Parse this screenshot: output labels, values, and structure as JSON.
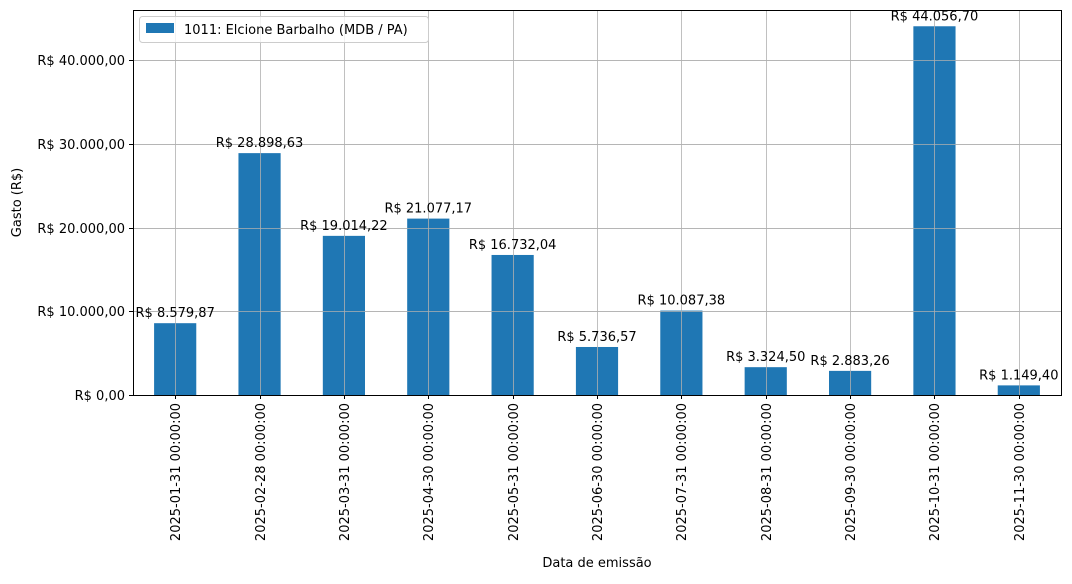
{
  "chart_data": {
    "type": "bar",
    "title": "",
    "xlabel": "Data de emissão",
    "ylabel": "Gasto (R$)",
    "ylim": [
      0,
      46000
    ],
    "grid": true,
    "legend_position": "upper left",
    "legend": [
      "1011: Elcione Barbalho (MDB / PA)"
    ],
    "categories": [
      "2025-01-31 00:00:00",
      "2025-02-28 00:00:00",
      "2025-03-31 00:00:00",
      "2025-04-30 00:00:00",
      "2025-05-31 00:00:00",
      "2025-06-30 00:00:00",
      "2025-07-31 00:00:00",
      "2025-08-31 00:00:00",
      "2025-09-30 00:00:00",
      "2025-10-31 00:00:00",
      "2025-11-30 00:00:00"
    ],
    "series": [
      {
        "name": "1011: Elcione Barbalho (MDB / PA)",
        "color": "#1f77b4",
        "values": [
          8579.87,
          28898.63,
          19014.22,
          21077.17,
          16732.04,
          5736.57,
          10087.38,
          3324.5,
          2883.26,
          44056.7,
          1149.4
        ]
      }
    ],
    "data_labels": [
      "R$ 8.579,87",
      "R$ 28.898,63",
      "R$ 19.014,22",
      "R$ 21.077,17",
      "R$ 16.732,04",
      "R$ 5.736,57",
      "R$ 10.087,38",
      "R$ 3.324,50",
      "R$ 2.883,26",
      "R$ 44.056,70",
      "R$ 1.149,40"
    ],
    "yticks": [
      0,
      10000,
      20000,
      30000,
      40000
    ],
    "ytick_labels": [
      "R$ 0,00",
      "R$ 10.000,00",
      "R$ 20.000,00",
      "R$ 30.000,00",
      "R$ 40.000,00"
    ]
  }
}
